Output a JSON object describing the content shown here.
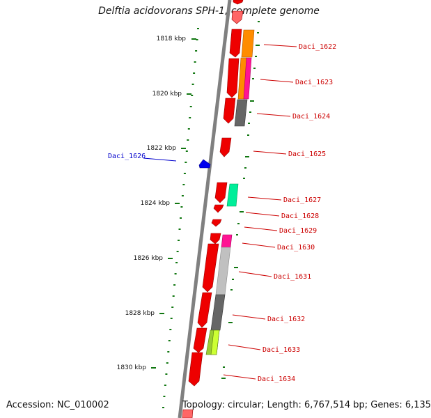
{
  "title": "Delftia acidovorans SPH-1, complete genome",
  "accession": "Accession: NC_010002",
  "topology": "Topology: circular; Length: 6,767,514 bp; Genes: 6,135",
  "colors": {
    "backbone": "#808080",
    "tick": "#117711",
    "gene_label_forward": "#cc0000",
    "gene_label_reverse": "#0000cc",
    "gene_reverse": "#0000ee"
  },
  "scale_labels": [
    "1818 kbp",
    "1820 kbp",
    "1822 kbp",
    "1824 kbp",
    "1826 kbp",
    "1828 kbp",
    "1830 kbp"
  ],
  "gene_labels": [
    {
      "text": "Daci_1622",
      "strand": "forward"
    },
    {
      "text": "Daci_1623",
      "strand": "forward"
    },
    {
      "text": "Daci_1624",
      "strand": "forward"
    },
    {
      "text": "Daci_1625",
      "strand": "forward"
    },
    {
      "text": "Daci_1626",
      "strand": "reverse"
    },
    {
      "text": "Daci_1627",
      "strand": "forward"
    },
    {
      "text": "Daci_1628",
      "strand": "forward"
    },
    {
      "text": "Daci_1629",
      "strand": "forward"
    },
    {
      "text": "Daci_1630",
      "strand": "forward"
    },
    {
      "text": "Daci_1631",
      "strand": "forward"
    },
    {
      "text": "Daci_1632",
      "strand": "forward"
    },
    {
      "text": "Daci_1633",
      "strand": "forward"
    },
    {
      "text": "Daci_1634",
      "strand": "forward"
    }
  ]
}
